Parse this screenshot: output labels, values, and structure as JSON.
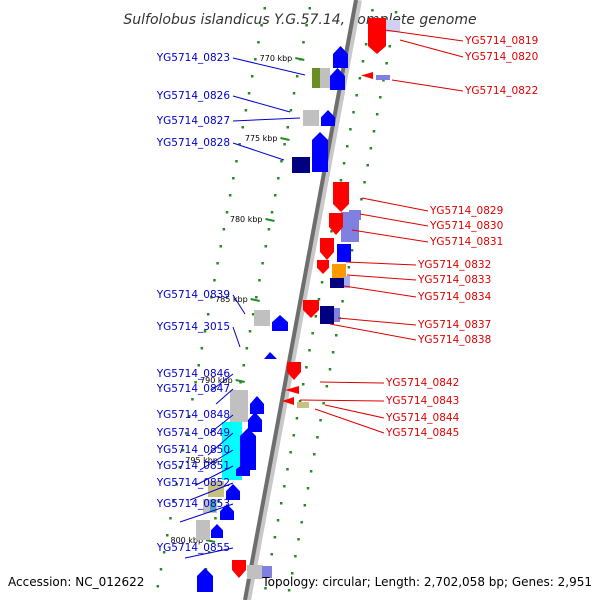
{
  "title": "Sulfolobus islandicus Y.G.57.14, complete genome",
  "accession": "Accession: NC_012622",
  "topology": "Topology: circular; Length: 2,702,058 bp; Genes: 2,951",
  "colors": {
    "backbone": "#808080",
    "left_label": "#0000cc",
    "right_label": "#dd0000",
    "left_gene": "#0000ff",
    "right_gene": "#ff0000",
    "tick_dot": "#228b22",
    "cyan_feature": "#00ffff",
    "khaki_feature": "#c8c080",
    "gray_feature": "#c0c0c0",
    "purple_feature": "#8080e0",
    "orange_feature": "#ff9900",
    "navy_feature": "#000080",
    "olive_feature": "#6b8e23"
  },
  "ticks": [
    "770 kbp",
    "775 kbp",
    "780 kbp",
    "785 kbp",
    "790 kbp",
    "795 kbp",
    "800 kbp"
  ],
  "left_genes": [
    "YG5714_0823",
    "YG5714_0826",
    "YG5714_0827",
    "YG5714_0828",
    "YG5714_0839",
    "YG5714_3015",
    "YG5714_0846",
    "YG5714_0847",
    "YG5714_0848",
    "YG5714_0849",
    "YG5714_0850",
    "YG5714_0851",
    "YG5714_0852",
    "YG5714_0853",
    "YG5714_0855"
  ],
  "right_genes": [
    "YG5714_0819",
    "YG5714_0820",
    "YG5714_0822",
    "YG5714_0829",
    "YG5714_0830",
    "YG5714_0831",
    "YG5714_0832",
    "YG5714_0833",
    "YG5714_0834",
    "YG5714_0837",
    "YG5714_0838",
    "YG5714_0842",
    "YG5714_0843",
    "YG5714_0844",
    "YG5714_0845"
  ]
}
